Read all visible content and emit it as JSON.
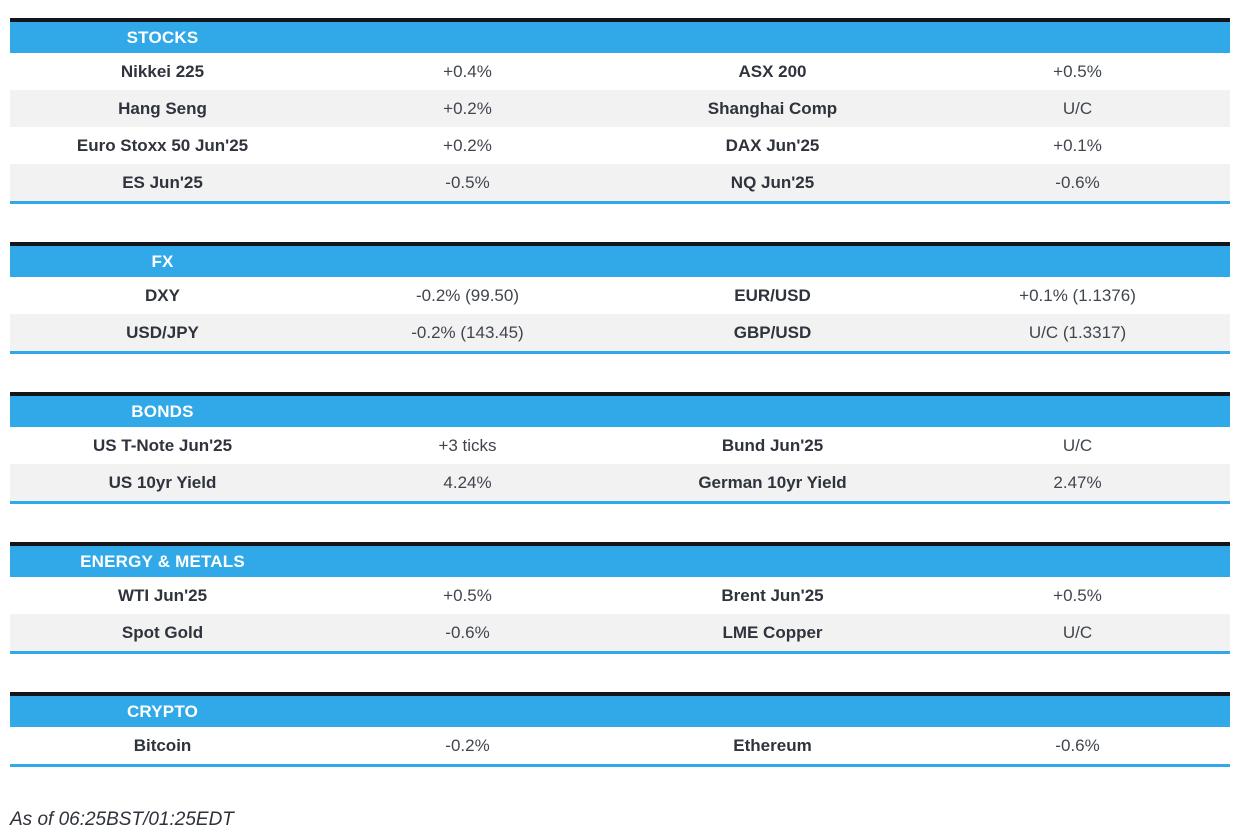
{
  "colors": {
    "accent_blue": "#31a9e8",
    "dark_rule": "#14151a",
    "row_stripe": "#f2f2f2",
    "header_text": "#ffffff"
  },
  "sections": [
    {
      "title": "STOCKS",
      "rows": [
        {
          "label1": "Nikkei 225",
          "value1": "+0.4%",
          "label2": "ASX 200",
          "value2": "+0.5%"
        },
        {
          "label1": "Hang Seng",
          "value1": "+0.2%",
          "label2": "Shanghai Comp",
          "value2": "U/C"
        },
        {
          "label1": "Euro Stoxx 50 Jun'25",
          "value1": "+0.2%",
          "label2": "DAX Jun'25",
          "value2": "+0.1%"
        },
        {
          "label1": "ES Jun'25",
          "value1": "-0.5%",
          "label2": "NQ Jun'25",
          "value2": "-0.6%"
        }
      ]
    },
    {
      "title": "FX",
      "rows": [
        {
          "label1": "DXY",
          "value1": "-0.2% (99.50)",
          "label2": "EUR/USD",
          "value2": "+0.1% (1.1376)"
        },
        {
          "label1": "USD/JPY",
          "value1": "-0.2% (143.45)",
          "label2": "GBP/USD",
          "value2": "U/C (1.3317)"
        }
      ]
    },
    {
      "title": "BONDS",
      "rows": [
        {
          "label1": "US T-Note Jun'25",
          "value1": "+3 ticks",
          "label2": "Bund Jun'25",
          "value2": "U/C"
        },
        {
          "label1": "US 10yr Yield",
          "value1": "4.24%",
          "label2": "German 10yr Yield",
          "value2": "2.47%"
        }
      ]
    },
    {
      "title": "ENERGY & METALS",
      "rows": [
        {
          "label1": "WTI Jun'25",
          "value1": "+0.5%",
          "label2": "Brent Jun'25",
          "value2": "+0.5%"
        },
        {
          "label1": "Spot Gold",
          "value1": "-0.6%",
          "label2": "LME Copper",
          "value2": "U/C"
        }
      ]
    },
    {
      "title": "CRYPTO",
      "rows": [
        {
          "label1": "Bitcoin",
          "value1": "-0.2%",
          "label2": "Ethereum",
          "value2": "-0.6%"
        }
      ]
    }
  ],
  "footer": {
    "as_of": "As of 06:25BST/01:25EDT"
  }
}
